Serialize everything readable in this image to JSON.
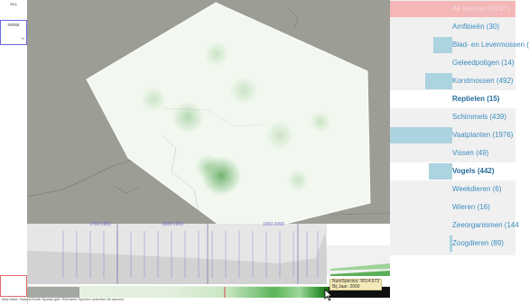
{
  "left_panel": {
    "all_label": "ALL",
    "none_label": "NONE",
    "none_value": "%"
  },
  "timeline": {
    "labels": [
      {
        "text": "1700-1800"
      },
      {
        "text": "1800-1900"
      },
      {
        "text": "1900-2000"
      }
    ]
  },
  "tooltip": {
    "line1": "NumSpecies: 9014.673",
    "line2": "Bij Jaar: 2000"
  },
  "status_text": "Map base: Natural Earth  Spatial grid: Richness  Species selection  All species",
  "species": [
    {
      "label": "All species (4247)",
      "count": 4247,
      "state": "all"
    },
    {
      "label": "Amfibieën (30)",
      "count": 30,
      "state": "normal"
    },
    {
      "label": "Blad- en Levermossen (",
      "count": null,
      "state": "normal"
    },
    {
      "label": "Geleedpotigen (14)",
      "count": 14,
      "state": "normal"
    },
    {
      "label": "Korstmossen (492)",
      "count": 492,
      "state": "normal"
    },
    {
      "label": "Reptielen (15)",
      "count": 15,
      "state": "selected"
    },
    {
      "label": "Schimmels (439)",
      "count": 439,
      "state": "normal"
    },
    {
      "label": "Vaatplanten (1976)",
      "count": 1976,
      "state": "normal"
    },
    {
      "label": "Vissen (49)",
      "count": 49,
      "state": "normal"
    },
    {
      "label": "Vogels (442)",
      "count": 442,
      "state": "selected"
    },
    {
      "label": "Weekdieren (6)",
      "count": 6,
      "state": "normal"
    },
    {
      "label": "Wieren (16)",
      "count": 16,
      "state": "normal"
    },
    {
      "label": "Zeeorganismen (144",
      "count": 144,
      "state": "normal"
    },
    {
      "label": "Zoogdieren (89)",
      "count": 89,
      "state": "normal"
    }
  ],
  "species_bar_fraction": [
    1.0,
    0.0,
    0.3,
    0.0,
    0.44,
    0.0,
    0.0,
    1.0,
    0.0,
    0.38,
    0.0,
    0.0,
    0.0,
    0.04
  ],
  "colors": {
    "map_land": "#9c9d95",
    "map_hull": "#f2f8ef",
    "highlight_all": "#f4b6b6",
    "bar_blue": "#acd3e0",
    "label_blue": "#3b8dbf"
  }
}
